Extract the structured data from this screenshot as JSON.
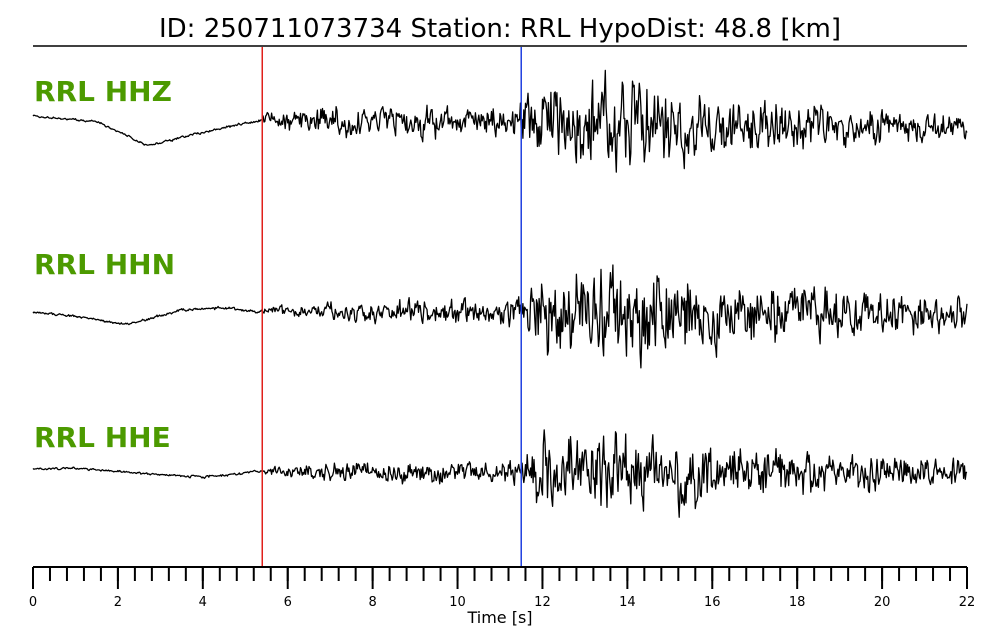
{
  "chart_data": {
    "type": "line",
    "title": "ID: 250711073734   Station: RRL   HypoDist:    48.8 [km]",
    "xlabel": "Time [s]",
    "xlim": [
      0,
      22
    ],
    "x_ticks": [
      "0",
      "2",
      "4",
      "6",
      "8",
      "10",
      "12",
      "14",
      "16",
      "18",
      "20",
      "22"
    ],
    "minor_tick_step": 0.4,
    "grid": false,
    "p_pick": {
      "time": 5.4,
      "color": "#e0201b"
    },
    "s_pick": {
      "time": 11.5,
      "color": "#1f3fe0"
    },
    "label_color": "#4c9a00",
    "trace_color": "#000000",
    "series": [
      {
        "name": "RRL HHZ",
        "envelope": [
          [
            0,
            0.02
          ],
          [
            5.3,
            0.03
          ],
          [
            5.5,
            0.18
          ],
          [
            7,
            0.3
          ],
          [
            9,
            0.32
          ],
          [
            11,
            0.32
          ],
          [
            11.5,
            0.45
          ],
          [
            12,
            0.75
          ],
          [
            13,
            0.9
          ],
          [
            14,
            1.0
          ],
          [
            15,
            0.8
          ],
          [
            16,
            0.6
          ],
          [
            18,
            0.45
          ],
          [
            20,
            0.35
          ],
          [
            22,
            0.25
          ]
        ],
        "swell": [
          [
            0,
            0.15
          ],
          [
            1.5,
            0.08
          ],
          [
            2.7,
            -0.22
          ],
          [
            4,
            -0.05
          ],
          [
            5.4,
            0.1
          ],
          [
            22,
            0
          ]
        ]
      },
      {
        "name": "RRL HHN",
        "envelope": [
          [
            0,
            0.02
          ],
          [
            5.3,
            0.03
          ],
          [
            5.5,
            0.08
          ],
          [
            7,
            0.18
          ],
          [
            9,
            0.25
          ],
          [
            11,
            0.22
          ],
          [
            11.5,
            0.3
          ],
          [
            12,
            0.75
          ],
          [
            13,
            0.85
          ],
          [
            14,
            1.0
          ],
          [
            15,
            0.8
          ],
          [
            16,
            0.65
          ],
          [
            18,
            0.55
          ],
          [
            20,
            0.4
          ],
          [
            22,
            0.35
          ]
        ],
        "swell": [
          [
            0,
            0.0
          ],
          [
            1,
            -0.05
          ],
          [
            2.2,
            -0.15
          ],
          [
            3.5,
            0.02
          ],
          [
            4.5,
            0.05
          ],
          [
            5.4,
            0.0
          ],
          [
            22,
            0
          ]
        ]
      },
      {
        "name": "RRL HHE",
        "envelope": [
          [
            0,
            0.02
          ],
          [
            5.3,
            0.03
          ],
          [
            5.5,
            0.08
          ],
          [
            7,
            0.18
          ],
          [
            9,
            0.25
          ],
          [
            11,
            0.22
          ],
          [
            11.5,
            0.3
          ],
          [
            12,
            0.9
          ],
          [
            13,
            0.85
          ],
          [
            14,
            0.8
          ],
          [
            15,
            0.7
          ],
          [
            15.5,
            1.0
          ],
          [
            16,
            0.6
          ],
          [
            18,
            0.45
          ],
          [
            20,
            0.35
          ],
          [
            22,
            0.28
          ]
        ],
        "swell": [
          [
            0,
            0.05
          ],
          [
            1,
            0.06
          ],
          [
            2.5,
            0.0
          ],
          [
            4,
            -0.05
          ],
          [
            5.4,
            0.02
          ],
          [
            22,
            0
          ]
        ]
      }
    ]
  }
}
